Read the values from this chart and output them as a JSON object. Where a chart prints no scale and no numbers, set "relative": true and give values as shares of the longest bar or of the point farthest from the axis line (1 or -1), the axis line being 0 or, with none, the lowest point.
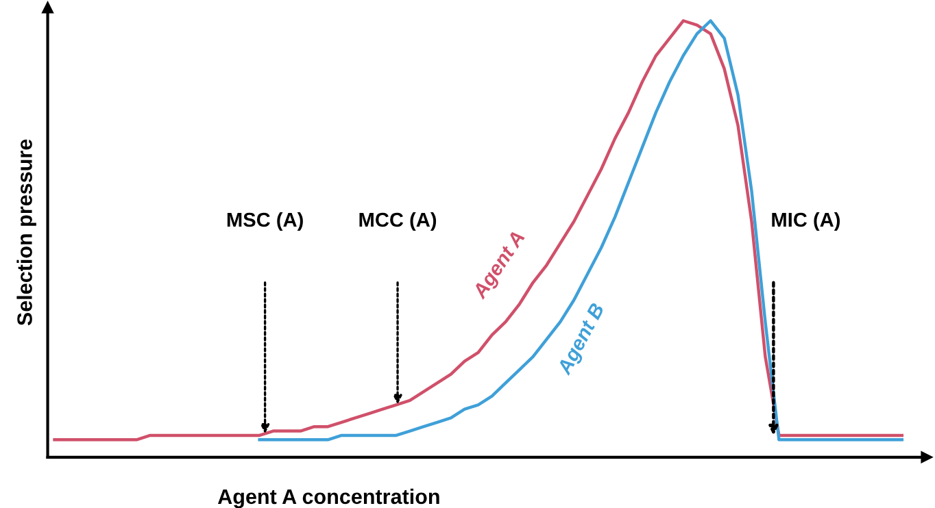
{
  "chart_data": {
    "type": "line",
    "relative": true,
    "xlabel": "Agent A concentration",
    "ylabel": "Selection pressure",
    "categories": [
      null,
      null,
      null,
      null,
      null,
      null,
      null,
      null,
      null,
      null,
      null,
      null,
      null,
      null,
      null,
      null,
      null,
      null,
      null,
      null,
      null,
      null,
      null,
      null,
      null,
      null,
      null,
      null,
      null,
      null,
      null,
      null,
      null,
      null,
      null,
      null,
      null,
      null,
      null,
      null,
      null,
      null,
      null,
      null,
      null,
      null,
      null,
      null,
      null,
      null,
      null,
      null,
      null,
      null,
      null,
      null,
      null,
      null,
      null,
      null,
      null,
      null,
      null
    ],
    "series": [
      {
        "name": "Agent A",
        "color": "#d0506a",
        "values": [
          0.04,
          0.04,
          0.04,
          0.04,
          0.04,
          0.04,
          0.04,
          0.05,
          0.05,
          0.05,
          0.05,
          0.05,
          0.05,
          0.05,
          0.05,
          0.05,
          0.06,
          0.06,
          0.06,
          0.07,
          0.07,
          0.08,
          0.09,
          0.1,
          0.11,
          0.12,
          0.13,
          0.15,
          0.17,
          0.19,
          0.22,
          0.24,
          0.28,
          0.31,
          0.35,
          0.4,
          0.44,
          0.49,
          0.54,
          0.6,
          0.66,
          0.73,
          0.79,
          0.86,
          0.92,
          0.96,
          1.0,
          0.99,
          0.97,
          0.89,
          0.76,
          0.54,
          0.23,
          0.05,
          0.05,
          0.05,
          0.05,
          0.05,
          0.05,
          0.05,
          0.05,
          0.05,
          0.05
        ]
      },
      {
        "name": "Agent B",
        "color": "#3fa0d8",
        "values": [
          null,
          null,
          null,
          null,
          null,
          null,
          null,
          null,
          null,
          null,
          null,
          null,
          null,
          null,
          null,
          0.04,
          0.04,
          0.04,
          0.04,
          0.04,
          0.04,
          0.05,
          0.05,
          0.05,
          0.05,
          0.05,
          0.06,
          0.07,
          0.08,
          0.09,
          0.11,
          0.12,
          0.14,
          0.17,
          0.2,
          0.23,
          0.27,
          0.31,
          0.36,
          0.42,
          0.48,
          0.55,
          0.63,
          0.71,
          0.79,
          0.86,
          0.92,
          0.97,
          1.0,
          0.96,
          0.83,
          0.61,
          0.31,
          0.04,
          0.04,
          0.04,
          0.04,
          0.04,
          0.04,
          0.04,
          0.04,
          0.04,
          0.04
        ]
      }
    ],
    "annotations": [
      "MSC (A)",
      "MCC (A)",
      "MIC (A)"
    ],
    "marker": "none",
    "line_style": "solid",
    "legend": false
  }
}
